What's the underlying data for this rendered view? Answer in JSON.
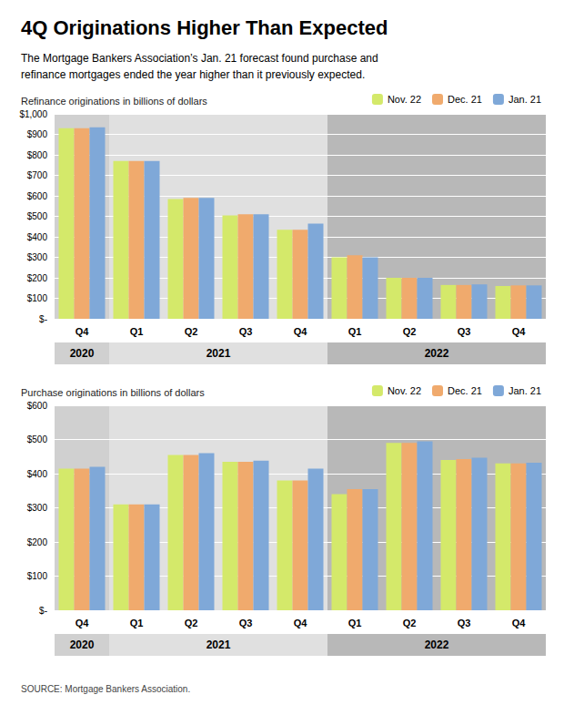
{
  "title": "4Q Originations Higher Than Expected",
  "subtitle": "The Mortgage Bankers Association’s Jan. 21 forecast found purchase and\nrefinance mortgages ended the year higher than it previously expected.",
  "source": "SOURCE: Mortgage Bankers Association.",
  "chart_data": [
    {
      "type": "bar",
      "title": "Refinance originations in billions of dollars",
      "categories": [
        "Q4",
        "Q1",
        "Q2",
        "Q3",
        "Q4",
        "Q1",
        "Q2",
        "Q3",
        "Q4"
      ],
      "series": [
        {
          "name": "Nov. 22",
          "color": "#d4e96a",
          "values": [
            930,
            770,
            585,
            505,
            435,
            300,
            200,
            165,
            160
          ]
        },
        {
          "name": "Dec. 21",
          "color": "#f0aa6d",
          "values": [
            930,
            770,
            590,
            510,
            435,
            310,
            200,
            165,
            163
          ]
        },
        {
          "name": "Jan. 21",
          "color": "#7fa8d8",
          "values": [
            935,
            770,
            590,
            510,
            465,
            300,
            200,
            168,
            163
          ]
        }
      ],
      "ylim": [
        0,
        1000
      ],
      "yticks": [
        {
          "value": 0,
          "label": "$-"
        },
        {
          "value": 100,
          "label": "$100"
        },
        {
          "value": 200,
          "label": "$200"
        },
        {
          "value": 300,
          "label": "$300"
        },
        {
          "value": 400,
          "label": "$400"
        },
        {
          "value": 500,
          "label": "$500"
        },
        {
          "value": 600,
          "label": "$600"
        },
        {
          "value": 700,
          "label": "$700"
        },
        {
          "value": 800,
          "label": "$800"
        },
        {
          "value": 900,
          "label": "$900"
        },
        {
          "value": 1000,
          "label": "$1,000"
        }
      ],
      "grid": true,
      "legend": "upper right",
      "annotations": [
        {
          "text": "2020",
          "span": 1
        },
        {
          "text": "2021",
          "span": 4
        },
        {
          "text": "2022",
          "span": 4
        }
      ]
    },
    {
      "type": "bar",
      "title": "Purchase originations in billions of dollars",
      "categories": [
        "Q4",
        "Q1",
        "Q2",
        "Q3",
        "Q4",
        "Q1",
        "Q2",
        "Q3",
        "Q4"
      ],
      "series": [
        {
          "name": "Nov. 22",
          "color": "#d4e96a",
          "values": [
            415,
            310,
            455,
            435,
            380,
            340,
            490,
            440,
            430
          ]
        },
        {
          "name": "Dec. 21",
          "color": "#f0aa6d",
          "values": [
            415,
            310,
            455,
            435,
            380,
            355,
            490,
            443,
            430
          ]
        },
        {
          "name": "Jan. 21",
          "color": "#7fa8d8",
          "values": [
            420,
            310,
            460,
            438,
            415,
            355,
            495,
            447,
            432
          ]
        }
      ],
      "ylim": [
        0,
        600
      ],
      "yticks": [
        {
          "value": 0,
          "label": "$-"
        },
        {
          "value": 100,
          "label": "$100"
        },
        {
          "value": 200,
          "label": "$200"
        },
        {
          "value": 300,
          "label": "$300"
        },
        {
          "value": 400,
          "label": "$400"
        },
        {
          "value": 500,
          "label": "$500"
        },
        {
          "value": 600,
          "label": "$600"
        }
      ],
      "grid": true,
      "legend": "upper right",
      "annotations": [
        {
          "text": "2020",
          "span": 1
        },
        {
          "text": "2021",
          "span": 4
        },
        {
          "text": "2022",
          "span": 4
        }
      ]
    }
  ]
}
